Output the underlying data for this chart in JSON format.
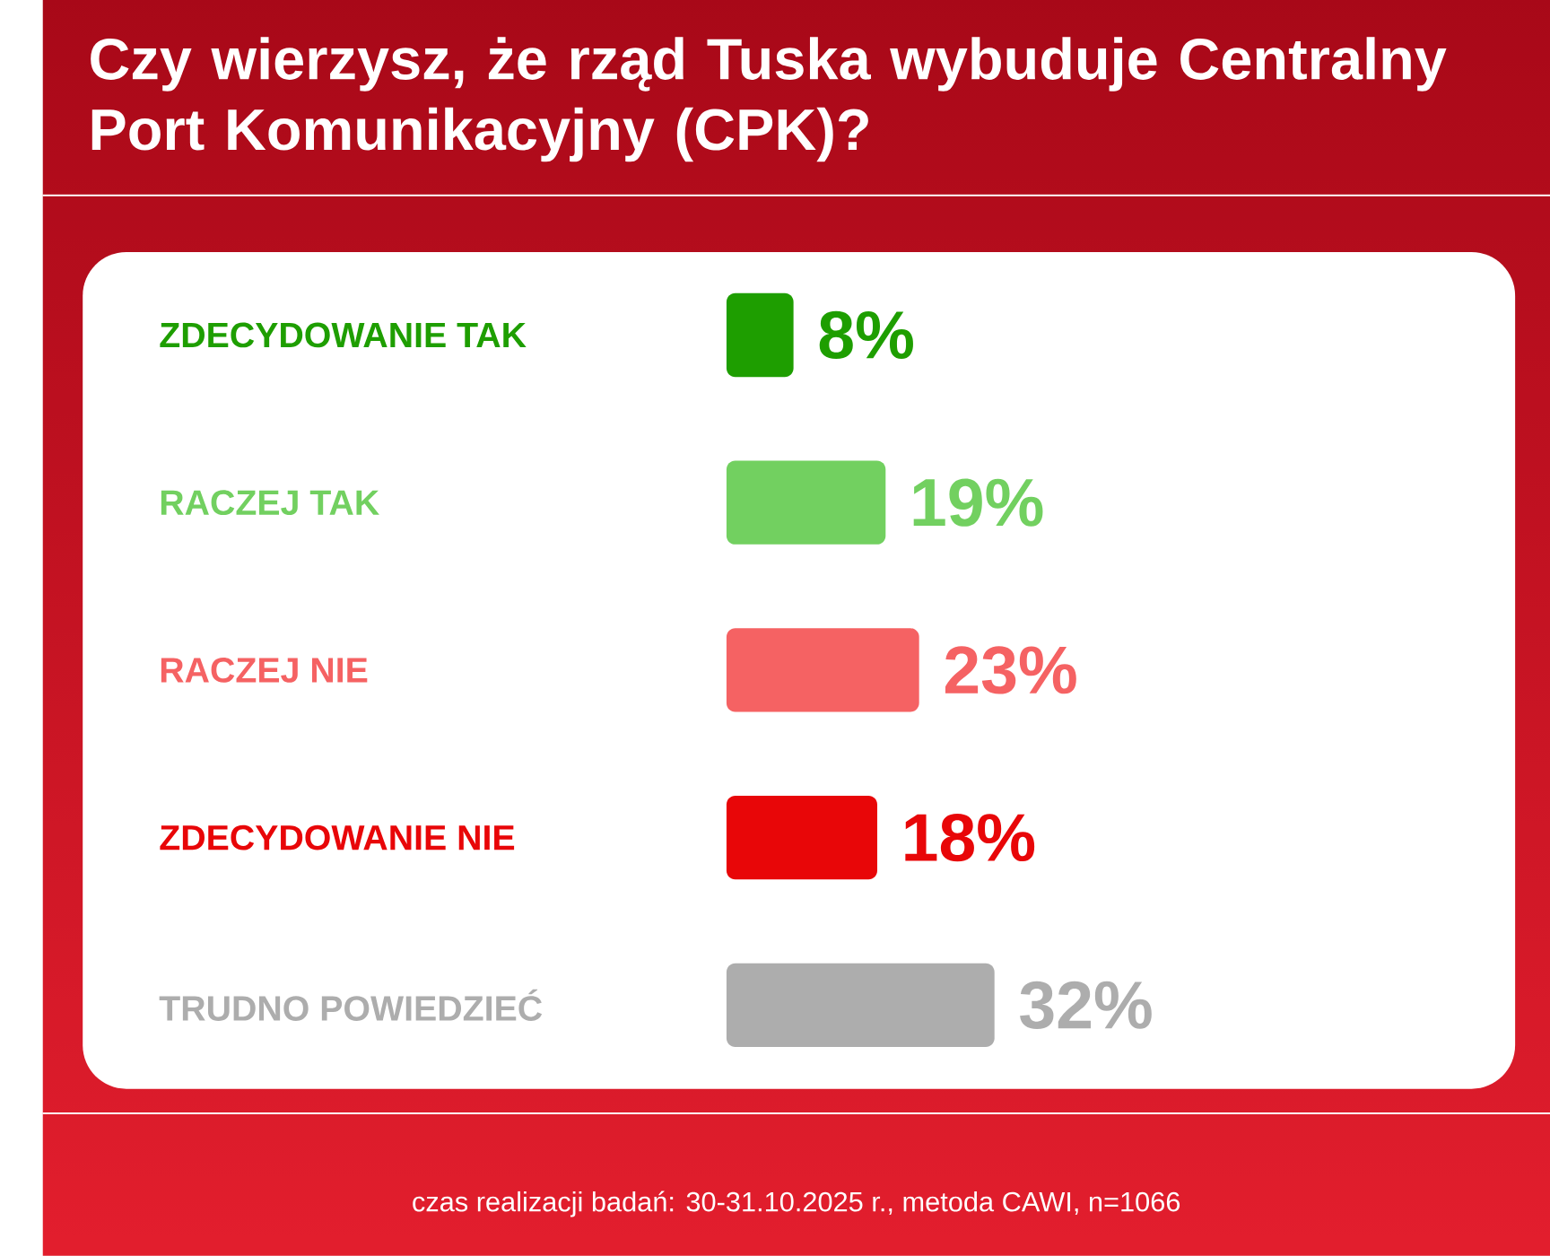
{
  "chart_data": {
    "type": "bar",
    "orientation": "horizontal",
    "title": "Czy wierzysz, że rząd Tuska wybuduje Centralny Port Komunikacyjny (CPK)?",
    "categories": [
      "ZDECYDOWANIE TAK",
      "RACZEJ TAK",
      "RACZEJ NIE",
      "ZDECYDOWANIE NIE",
      "TRUDNO POWIEDZIEĆ"
    ],
    "values": [
      8,
      19,
      23,
      18,
      32
    ],
    "colors": [
      "#1e9e00",
      "#72d060",
      "#f56263",
      "#e80608",
      "#adadad"
    ],
    "value_labels": [
      "8%",
      "19%",
      "23%",
      "18%",
      "32%"
    ],
    "annotations": [
      "czas realizacji badań: 30-31.10.2025 r., metoda CAWI, n=1066"
    ]
  }
}
